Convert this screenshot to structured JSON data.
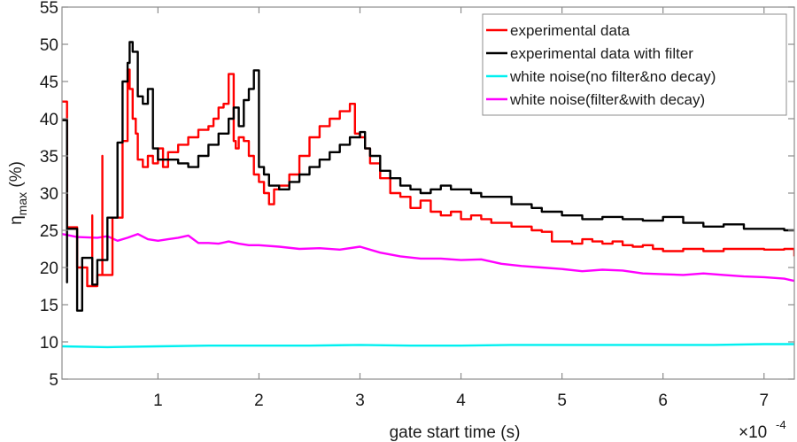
{
  "chart_data": {
    "type": "line",
    "title": "",
    "xlabel": "gate start time (s)",
    "ylabel_main": "η",
    "ylabel_sub": "max",
    "ylabel_suffix": " (%)",
    "x_multiplier_base": "×10",
    "x_multiplier_exp": "-4",
    "xlim": [
      0.05,
      7.3
    ],
    "ylim": [
      5,
      55
    ],
    "xticks": [
      1,
      2,
      3,
      4,
      5,
      6,
      7
    ],
    "xtick_labels": [
      "1",
      "2",
      "3",
      "4",
      "5",
      "6",
      "7"
    ],
    "yticks": [
      5,
      10,
      15,
      20,
      25,
      30,
      35,
      40,
      45,
      50,
      55
    ],
    "ytick_labels": [
      "5",
      "10",
      "15",
      "20",
      "25",
      "30",
      "35",
      "40",
      "45",
      "50",
      "55"
    ],
    "grid": false,
    "legend_position": "top-right",
    "series": [
      {
        "name": "experimental data",
        "color": "#ff0000",
        "step": true,
        "x": [
          0.05,
          0.1,
          0.1,
          0.2,
          0.2,
          0.3,
          0.3,
          0.35,
          0.35,
          0.4,
          0.45,
          0.45,
          0.5,
          0.55,
          0.55,
          0.6,
          0.65,
          0.7,
          0.72,
          0.75,
          0.78,
          0.8,
          0.85,
          0.9,
          0.95,
          1.0,
          1.05,
          1.1,
          1.2,
          1.3,
          1.4,
          1.5,
          1.55,
          1.6,
          1.65,
          1.7,
          1.75,
          1.77,
          1.8,
          1.85,
          1.9,
          1.95,
          2.0,
          2.05,
          2.1,
          2.15,
          2.2,
          2.3,
          2.4,
          2.5,
          2.6,
          2.7,
          2.8,
          2.9,
          2.95,
          3.0,
          3.05,
          3.1,
          3.2,
          3.3,
          3.4,
          3.5,
          3.6,
          3.7,
          3.8,
          3.9,
          4.0,
          4.1,
          4.2,
          4.3,
          4.4,
          4.5,
          4.6,
          4.7,
          4.8,
          4.9,
          5.0,
          5.1,
          5.2,
          5.3,
          5.4,
          5.5,
          5.6,
          5.7,
          5.8,
          5.9,
          6.0,
          6.2,
          6.4,
          6.6,
          6.8,
          7.0,
          7.2,
          7.3
        ],
        "values": [
          42.3,
          42.3,
          25.4,
          25.4,
          20.0,
          20.0,
          17.5,
          27.0,
          17.5,
          19.0,
          35.0,
          19.0,
          19.0,
          26.7,
          26.7,
          26.7,
          37.0,
          46.6,
          44.0,
          40.0,
          38.0,
          34.5,
          33.5,
          35.0,
          34.0,
          36.0,
          33.5,
          35.5,
          36.5,
          37.5,
          38.5,
          39.0,
          40.0,
          41.5,
          42.0,
          46.0,
          37.0,
          36.0,
          37.5,
          37.0,
          35.0,
          32.5,
          31.5,
          30.0,
          28.5,
          30.5,
          31.0,
          32.5,
          35.0,
          37.5,
          39.0,
          40.0,
          41.0,
          42.0,
          38.0,
          37.5,
          36.0,
          34.0,
          32.0,
          30.0,
          29.5,
          28.0,
          29.0,
          27.5,
          27.0,
          27.5,
          26.5,
          27.0,
          26.5,
          26.0,
          26.0,
          25.5,
          25.5,
          25.0,
          24.8,
          23.5,
          23.5,
          23.2,
          23.8,
          23.5,
          23.2,
          23.5,
          23.0,
          22.8,
          23.0,
          22.5,
          22.2,
          22.5,
          22.2,
          22.5,
          22.5,
          22.4,
          22.5,
          21.5
        ]
      },
      {
        "name": "experimental data with filter",
        "color": "#000000",
        "step": true,
        "x": [
          0.05,
          0.1,
          0.1,
          0.15,
          0.2,
          0.25,
          0.3,
          0.35,
          0.4,
          0.45,
          0.5,
          0.55,
          0.6,
          0.65,
          0.7,
          0.72,
          0.75,
          0.8,
          0.85,
          0.9,
          0.95,
          1.0,
          1.1,
          1.2,
          1.3,
          1.4,
          1.5,
          1.6,
          1.7,
          1.75,
          1.8,
          1.85,
          1.9,
          1.95,
          2.0,
          2.05,
          2.1,
          2.2,
          2.3,
          2.4,
          2.5,
          2.6,
          2.7,
          2.8,
          2.9,
          3.0,
          3.05,
          3.1,
          3.2,
          3.3,
          3.4,
          3.5,
          3.6,
          3.7,
          3.8,
          3.9,
          4.0,
          4.1,
          4.2,
          4.3,
          4.4,
          4.5,
          4.6,
          4.7,
          4.8,
          4.9,
          5.0,
          5.2,
          5.4,
          5.6,
          5.8,
          6.0,
          6.2,
          6.4,
          6.6,
          6.8,
          7.0,
          7.2,
          7.3
        ],
        "values": [
          39.8,
          18.0,
          25.2,
          25.2,
          14.2,
          21.3,
          21.3,
          17.7,
          21.0,
          21.0,
          26.7,
          26.7,
          36.8,
          45.0,
          47.5,
          50.3,
          49.0,
          43.0,
          42.0,
          44.0,
          36.0,
          34.5,
          34.5,
          34.0,
          33.5,
          35.0,
          36.5,
          38.0,
          40.0,
          41.5,
          39.0,
          42.5,
          44.0,
          46.5,
          33.5,
          32.5,
          31.0,
          30.5,
          31.5,
          32.5,
          33.5,
          34.5,
          35.5,
          36.5,
          37.5,
          38.2,
          36.0,
          35.0,
          33.0,
          32.0,
          31.0,
          30.5,
          30.0,
          30.5,
          31.0,
          30.5,
          30.5,
          30.0,
          29.5,
          29.5,
          29.5,
          28.5,
          28.5,
          28.0,
          27.5,
          27.5,
          27.0,
          26.5,
          26.8,
          26.5,
          26.3,
          26.8,
          26.0,
          25.5,
          25.8,
          25.2,
          25.2,
          25.0,
          25.0
        ]
      },
      {
        "name": "white noise(no filter&no decay)",
        "color": "#00f0f0",
        "step": false,
        "x": [
          0.05,
          0.5,
          1.0,
          1.5,
          2.0,
          2.5,
          3.0,
          3.5,
          4.0,
          4.5,
          5.0,
          5.5,
          6.0,
          6.5,
          7.0,
          7.3
        ],
        "values": [
          9.4,
          9.3,
          9.4,
          9.5,
          9.5,
          9.5,
          9.6,
          9.5,
          9.5,
          9.6,
          9.6,
          9.6,
          9.6,
          9.6,
          9.7,
          9.7
        ]
      },
      {
        "name": "white noise(filter&with decay)",
        "color": "#ff00ff",
        "step": false,
        "x": [
          0.05,
          0.2,
          0.4,
          0.5,
          0.6,
          0.7,
          0.8,
          0.9,
          1.0,
          1.1,
          1.2,
          1.3,
          1.4,
          1.5,
          1.6,
          1.7,
          1.8,
          1.9,
          2.0,
          2.2,
          2.4,
          2.6,
          2.8,
          3.0,
          3.2,
          3.4,
          3.6,
          3.8,
          4.0,
          4.2,
          4.4,
          4.6,
          4.8,
          5.0,
          5.2,
          5.4,
          5.6,
          5.8,
          6.0,
          6.2,
          6.4,
          6.6,
          6.8,
          7.0,
          7.2,
          7.3
        ],
        "values": [
          24.5,
          24.1,
          24.0,
          24.2,
          23.6,
          24.0,
          24.5,
          23.8,
          23.6,
          23.8,
          24.0,
          24.3,
          23.3,
          23.3,
          23.2,
          23.5,
          23.2,
          23.0,
          23.0,
          22.8,
          22.5,
          22.6,
          22.4,
          22.8,
          22.0,
          21.5,
          21.2,
          21.2,
          21.0,
          21.1,
          20.5,
          20.2,
          20.0,
          19.8,
          19.5,
          19.7,
          19.6,
          19.2,
          19.1,
          19.0,
          19.2,
          19.0,
          18.8,
          18.7,
          18.5,
          18.2
        ]
      }
    ]
  }
}
